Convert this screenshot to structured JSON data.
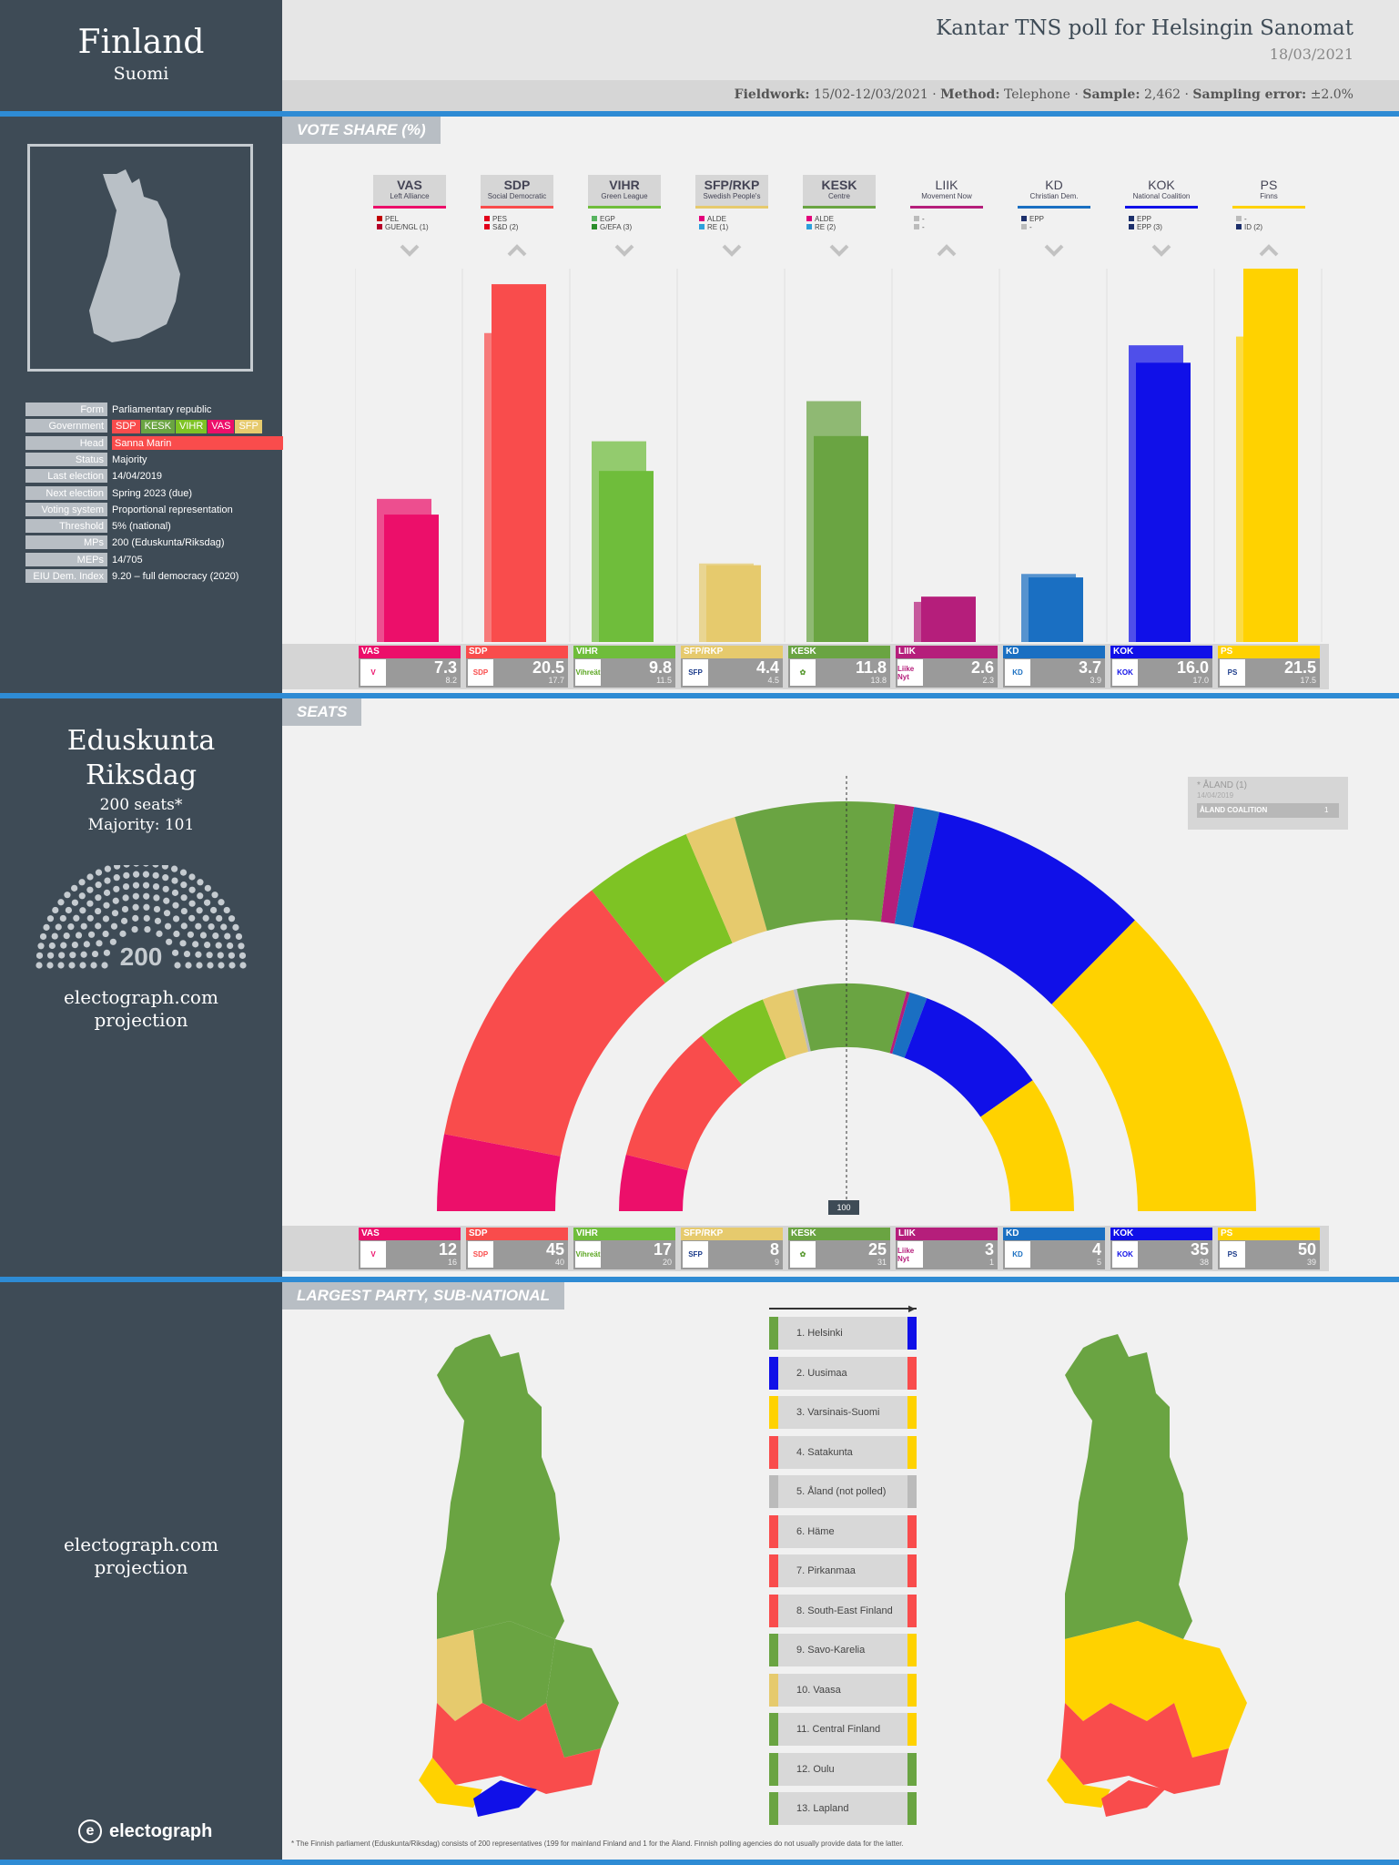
{
  "header": {
    "country": "Finland",
    "country_native": "Suomi",
    "poll_title_pre": "Kantar TNS",
    "poll_title_mid": "poll for",
    "poll_title_client": "Helsingin Sanomat",
    "date": "18/03/2021",
    "fieldwork_label": "Fieldwork:",
    "fieldwork_value": "15/02-12/03/2021",
    "method_label": "Method:",
    "method_value": "Telephone",
    "sample_label": "Sample:",
    "sample_value": "2,462",
    "error_label": "Sampling error:",
    "error_value": "±2.0%"
  },
  "info": [
    {
      "key": "Form",
      "value": "Parliamentary republic"
    },
    {
      "key": "Government",
      "value": ""
    },
    {
      "key": "Head",
      "value": "Sanna Marin"
    },
    {
      "key": "Status",
      "value": "Majority"
    },
    {
      "key": "Last election",
      "value": "14/04/2019"
    },
    {
      "key": "Next election",
      "value": "Spring 2023 (due)"
    },
    {
      "key": "Voting system",
      "value": "Proportional  representation"
    },
    {
      "key": "Threshold",
      "value": "5% (national)"
    },
    {
      "key": "MPs",
      "value": "200 (Eduskunta/Riksdag)"
    },
    {
      "key": "MEPs",
      "value": "14/705"
    },
    {
      "key": "EIU Dem. Index",
      "value": "9.20 – full democracy (2020)"
    }
  ],
  "government_parties": [
    {
      "name": "SDP",
      "color": "#f94c4c"
    },
    {
      "name": "KESK",
      "color": "#6aa442"
    },
    {
      "name": "VIHR",
      "color": "#7ec324"
    },
    {
      "name": "VAS",
      "color": "#ec0f6a"
    },
    {
      "name": "SFP",
      "color": "#e6ca6d"
    }
  ],
  "sections": {
    "vote_share": "VOTE SHARE (%)",
    "seats": "SEATS",
    "subnational": "LARGEST PARTY, SUB-NATIONAL"
  },
  "parliament": {
    "name1": "Eduskunta",
    "name2": "Riksdag",
    "seats_text": "200 seats*",
    "majority_text": "Majority: 101",
    "total": "200",
    "projection1": "electograph.com",
    "projection2": "projection",
    "majority_marker": "100"
  },
  "aland": {
    "title": "* ÅLAND  (1)",
    "date": "14/04/2019",
    "party": "ÅLAND COALITION",
    "seats": "1"
  },
  "chart_data": [
    {
      "type": "bar",
      "title": "VOTE SHARE (%)",
      "categories": [
        "VAS",
        "SDP",
        "VIHR",
        "SFP/RKP",
        "KESK",
        "LIIK",
        "KD",
        "KOK",
        "PS"
      ],
      "series": [
        {
          "name": "Poll",
          "values": [
            7.3,
            20.5,
            9.8,
            4.4,
            11.8,
            2.6,
            3.7,
            16.0,
            21.5
          ]
        },
        {
          "name": "Last election (2019)",
          "values": [
            8.2,
            17.7,
            11.5,
            4.5,
            13.8,
            2.3,
            3.9,
            17.0,
            17.5
          ]
        }
      ],
      "ylim": [
        0,
        24
      ]
    },
    {
      "type": "pie",
      "title": "SEATS",
      "categories": [
        "VAS",
        "SDP",
        "VIHR",
        "SFP/RKP",
        "Other",
        "KESK",
        "LIIK",
        "KD",
        "KOK",
        "PS"
      ],
      "series": [
        {
          "name": "Projection",
          "values": [
            12,
            45,
            17,
            8,
            0,
            25,
            3,
            4,
            35,
            50
          ]
        },
        {
          "name": "Last election",
          "values": [
            16,
            40,
            20,
            9,
            1,
            31,
            1,
            5,
            38,
            39
          ]
        }
      ]
    }
  ],
  "parties": [
    {
      "abbr": "VAS",
      "full": "Left Alliance",
      "color": "#ec0f6a",
      "logo": "V",
      "logo_color": "#ec0f6a",
      "eu": [
        {
          "t": "PEL",
          "c": "#c00000"
        },
        {
          "t": "GUE/NGL (1)",
          "c": "#b5002a"
        }
      ],
      "dir": "down",
      "bold": true
    },
    {
      "abbr": "SDP",
      "full": "Social Democratic",
      "color": "#f94c4c",
      "logo": "SDP",
      "logo_color": "#f94c4c",
      "eu": [
        {
          "t": "PES",
          "c": "#e2001a"
        },
        {
          "t": "S&D (2)",
          "c": "#e2001a"
        }
      ],
      "dir": "up",
      "bold": true
    },
    {
      "abbr": "VIHR",
      "full": "Green League",
      "color": "#6fbd3b",
      "logo": "Vihreät",
      "logo_color": "#5aa520",
      "eu": [
        {
          "t": "EGP",
          "c": "#57b45f"
        },
        {
          "t": "G/EFA (3)",
          "c": "#2a8d2a"
        }
      ],
      "dir": "down",
      "bold": true
    },
    {
      "abbr": "SFP/RKP",
      "full": "Swedish People's",
      "color": "#e6ca6d",
      "logo": "SFP",
      "logo_color": "#1a3a8a",
      "eu": [
        {
          "t": "ALDE",
          "c": "#e3007a"
        },
        {
          "t": "RE (1)",
          "c": "#2ba0dc"
        }
      ],
      "dir": "down",
      "bold": true
    },
    {
      "abbr": "KESK",
      "full": "Centre",
      "color": "#6aa442",
      "logo": "✿",
      "logo_color": "#5a9a32",
      "eu": [
        {
          "t": "ALDE",
          "c": "#e3007a"
        },
        {
          "t": "RE (2)",
          "c": "#2ba0dc"
        }
      ],
      "dir": "down",
      "bold": true
    },
    {
      "abbr": "LIIK",
      "full": "Movement Now",
      "color": "#b51e7b",
      "logo": "Liike Nyt",
      "logo_color": "#b51e7b",
      "eu": [
        {
          "t": "-",
          "c": "#bbbbbb"
        },
        {
          "t": "-",
          "c": "#bbbbbb"
        }
      ],
      "dir": "up",
      "bold": false
    },
    {
      "abbr": "KD",
      "full": "Christian Dem.",
      "color": "#1a6fc2",
      "logo": "KD",
      "logo_color": "#1a6fc2",
      "eu": [
        {
          "t": "EPP",
          "c": "#1c2f6b"
        },
        {
          "t": "-",
          "c": "#bbbbbb"
        }
      ],
      "dir": "down",
      "bold": false
    },
    {
      "abbr": "KOK",
      "full": "National Coalition",
      "color": "#1010e8",
      "logo": "KOK",
      "logo_color": "#1010e8",
      "eu": [
        {
          "t": "EPP",
          "c": "#1c2f6b"
        },
        {
          "t": "EPP (3)",
          "c": "#1c2f6b"
        }
      ],
      "dir": "down",
      "bold": false
    },
    {
      "abbr": "PS",
      "full": "Finns",
      "color": "#ffd200",
      "logo": "PS",
      "logo_color": "#1a3a8a",
      "eu": [
        {
          "t": "-",
          "c": "#bbbbbb"
        },
        {
          "t": "ID (2)",
          "c": "#1c2f6b"
        }
      ],
      "dir": "up",
      "bold": false
    }
  ],
  "vote_cards": [
    {
      "label": "VAS",
      "value": "7.3",
      "prev": "8.2"
    },
    {
      "label": "SDP",
      "value": "20.5",
      "prev": "17.7"
    },
    {
      "label": "VIHR",
      "value": "9.8",
      "prev": "11.5"
    },
    {
      "label": "SFP/RKP",
      "value": "4.4",
      "prev": "4.5"
    },
    {
      "label": "KESK",
      "value": "11.8",
      "prev": "13.8"
    },
    {
      "label": "LIIK",
      "value": "2.6",
      "prev": "2.3"
    },
    {
      "label": "KD",
      "value": "3.7",
      "prev": "3.9"
    },
    {
      "label": "KOK",
      "value": "16.0",
      "prev": "17.0"
    },
    {
      "label": "PS",
      "value": "21.5",
      "prev": "17.5"
    }
  ],
  "seat_cards": [
    {
      "label": "VAS",
      "value": "12",
      "prev": "16"
    },
    {
      "label": "SDP",
      "value": "45",
      "prev": "40"
    },
    {
      "label": "VIHR",
      "value": "17",
      "prev": "20"
    },
    {
      "label": "SFP/RKP",
      "value": "8",
      "prev": "9"
    },
    {
      "label": "KESK",
      "value": "25",
      "prev": "31"
    },
    {
      "label": "LIIK",
      "value": "3",
      "prev": "1"
    },
    {
      "label": "KD",
      "value": "4",
      "prev": "5"
    },
    {
      "label": "KOK",
      "value": "35",
      "prev": "38"
    },
    {
      "label": "PS",
      "value": "50",
      "prev": "39"
    }
  ],
  "regions": [
    {
      "name": "1. Helsinki",
      "left": "#6aa442",
      "right": "#1010e8"
    },
    {
      "name": "2. Uusimaa",
      "left": "#1010e8",
      "right": "#f94c4c"
    },
    {
      "name": "3. Varsinais-Suomi",
      "left": "#ffd200",
      "right": "#ffd200"
    },
    {
      "name": "4. Satakunta",
      "left": "#f94c4c",
      "right": "#ffd200"
    },
    {
      "name": "5. Åland  (not polled)",
      "left": "#bbbbbb",
      "right": "#bbbbbb"
    },
    {
      "name": "6. Häme",
      "left": "#f94c4c",
      "right": "#f94c4c"
    },
    {
      "name": "7. Pirkanmaa",
      "left": "#f94c4c",
      "right": "#f94c4c"
    },
    {
      "name": "8. South-East  Finland",
      "left": "#f94c4c",
      "right": "#f94c4c"
    },
    {
      "name": "9. Savo-Karelia",
      "left": "#6aa442",
      "right": "#ffd200"
    },
    {
      "name": "10. Vaasa",
      "left": "#e6ca6d",
      "right": "#ffd200"
    },
    {
      "name": "11. Central Finland",
      "left": "#6aa442",
      "right": "#ffd200"
    },
    {
      "name": "12. Oulu",
      "left": "#6aa442",
      "right": "#6aa442"
    },
    {
      "name": "13. Lapland",
      "left": "#6aa442",
      "right": "#6aa442"
    }
  ],
  "footer": {
    "brand": "electograph",
    "note": "* The Finnish parliament (Eduskunta/Riksdag) consists of 200 representatives (199 for mainland Finland and 1 for the Åland. Finnish polling agencies do not usually provide data for the latter."
  }
}
